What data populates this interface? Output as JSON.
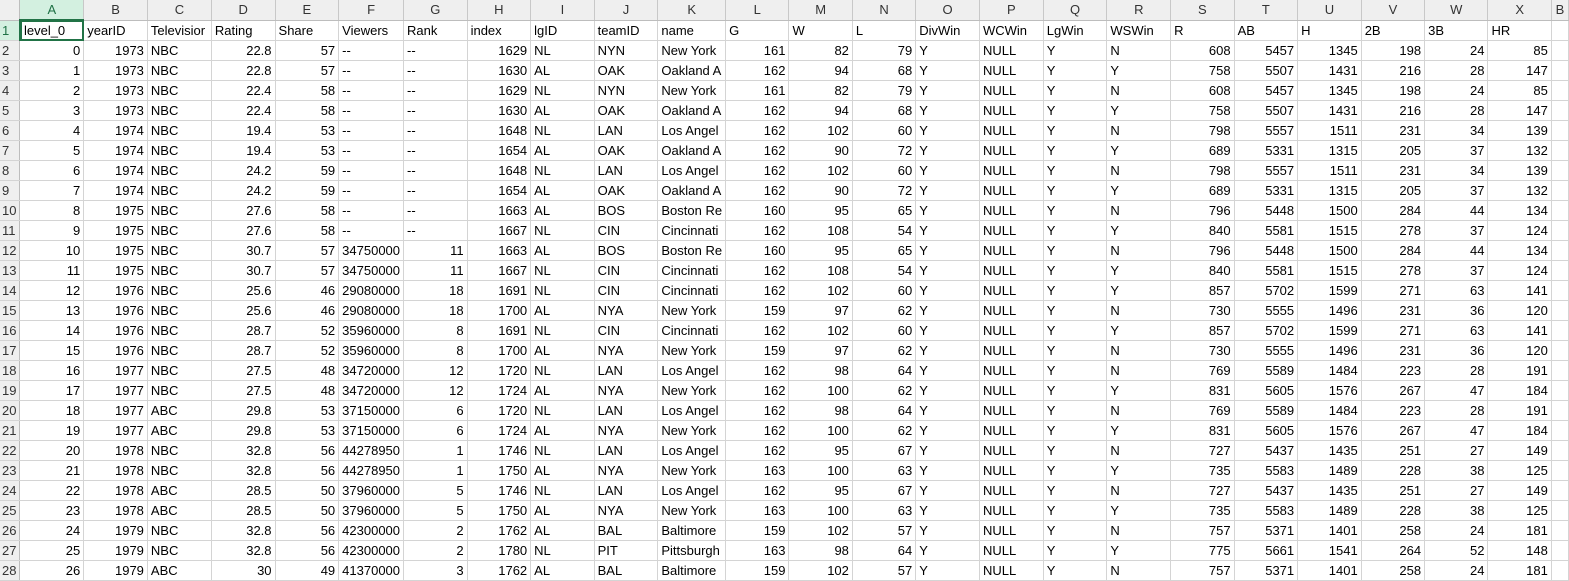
{
  "columns": [
    {
      "letter": "A",
      "kind": "num"
    },
    {
      "letter": "B",
      "kind": "num"
    },
    {
      "letter": "C",
      "kind": "txt"
    },
    {
      "letter": "D",
      "kind": "num"
    },
    {
      "letter": "E",
      "kind": "num"
    },
    {
      "letter": "F",
      "kind": "mix"
    },
    {
      "letter": "G",
      "kind": "mix"
    },
    {
      "letter": "H",
      "kind": "num"
    },
    {
      "letter": "I",
      "kind": "txt"
    },
    {
      "letter": "J",
      "kind": "txt"
    },
    {
      "letter": "K",
      "kind": "txt"
    },
    {
      "letter": "L",
      "kind": "num"
    },
    {
      "letter": "M",
      "kind": "num"
    },
    {
      "letter": "N",
      "kind": "num"
    },
    {
      "letter": "O",
      "kind": "txt"
    },
    {
      "letter": "P",
      "kind": "txt"
    },
    {
      "letter": "Q",
      "kind": "txt"
    },
    {
      "letter": "R",
      "kind": "txt"
    },
    {
      "letter": "S",
      "kind": "num"
    },
    {
      "letter": "T",
      "kind": "num"
    },
    {
      "letter": "U",
      "kind": "num"
    },
    {
      "letter": "V",
      "kind": "num"
    },
    {
      "letter": "W",
      "kind": "num"
    },
    {
      "letter": "X",
      "kind": "num"
    },
    {
      "letter": "B",
      "kind": "txt"
    }
  ],
  "header_row": [
    "level_0",
    "yearID",
    "Televisior",
    "Rating",
    "Share",
    "Viewers",
    "Rank",
    "index",
    "lgID",
    "teamID",
    "name",
    "G",
    "W",
    "L",
    "DivWin",
    "WCWin",
    "LgWin",
    "WSWin",
    "R",
    "AB",
    "H",
    "2B",
    "3B",
    "HR",
    ""
  ],
  "rows": [
    [
      "0",
      "1973",
      "NBC",
      "22.8",
      "57",
      "--",
      "--",
      "1629",
      "NL",
      "NYN",
      "New York",
      "161",
      "82",
      "79",
      "Y",
      "NULL",
      "Y",
      "N",
      "608",
      "5457",
      "1345",
      "198",
      "24",
      "85",
      ""
    ],
    [
      "1",
      "1973",
      "NBC",
      "22.8",
      "57",
      "--",
      "--",
      "1630",
      "AL",
      "OAK",
      "Oakland A",
      "162",
      "94",
      "68",
      "Y",
      "NULL",
      "Y",
      "Y",
      "758",
      "5507",
      "1431",
      "216",
      "28",
      "147",
      ""
    ],
    [
      "2",
      "1973",
      "NBC",
      "22.4",
      "58",
      "--",
      "--",
      "1629",
      "NL",
      "NYN",
      "New York",
      "161",
      "82",
      "79",
      "Y",
      "NULL",
      "Y",
      "N",
      "608",
      "5457",
      "1345",
      "198",
      "24",
      "85",
      ""
    ],
    [
      "3",
      "1973",
      "NBC",
      "22.4",
      "58",
      "--",
      "--",
      "1630",
      "AL",
      "OAK",
      "Oakland A",
      "162",
      "94",
      "68",
      "Y",
      "NULL",
      "Y",
      "Y",
      "758",
      "5507",
      "1431",
      "216",
      "28",
      "147",
      ""
    ],
    [
      "4",
      "1974",
      "NBC",
      "19.4",
      "53",
      "--",
      "--",
      "1648",
      "NL",
      "LAN",
      "Los Angel",
      "162",
      "102",
      "60",
      "Y",
      "NULL",
      "Y",
      "N",
      "798",
      "5557",
      "1511",
      "231",
      "34",
      "139",
      ""
    ],
    [
      "5",
      "1974",
      "NBC",
      "19.4",
      "53",
      "--",
      "--",
      "1654",
      "AL",
      "OAK",
      "Oakland A",
      "162",
      "90",
      "72",
      "Y",
      "NULL",
      "Y",
      "Y",
      "689",
      "5331",
      "1315",
      "205",
      "37",
      "132",
      ""
    ],
    [
      "6",
      "1974",
      "NBC",
      "24.2",
      "59",
      "--",
      "--",
      "1648",
      "NL",
      "LAN",
      "Los Angel",
      "162",
      "102",
      "60",
      "Y",
      "NULL",
      "Y",
      "N",
      "798",
      "5557",
      "1511",
      "231",
      "34",
      "139",
      ""
    ],
    [
      "7",
      "1974",
      "NBC",
      "24.2",
      "59",
      "--",
      "--",
      "1654",
      "AL",
      "OAK",
      "Oakland A",
      "162",
      "90",
      "72",
      "Y",
      "NULL",
      "Y",
      "Y",
      "689",
      "5331",
      "1315",
      "205",
      "37",
      "132",
      ""
    ],
    [
      "8",
      "1975",
      "NBC",
      "27.6",
      "58",
      "--",
      "--",
      "1663",
      "AL",
      "BOS",
      "Boston Re",
      "160",
      "95",
      "65",
      "Y",
      "NULL",
      "Y",
      "N",
      "796",
      "5448",
      "1500",
      "284",
      "44",
      "134",
      ""
    ],
    [
      "9",
      "1975",
      "NBC",
      "27.6",
      "58",
      "--",
      "--",
      "1667",
      "NL",
      "CIN",
      "Cincinnati",
      "162",
      "108",
      "54",
      "Y",
      "NULL",
      "Y",
      "Y",
      "840",
      "5581",
      "1515",
      "278",
      "37",
      "124",
      ""
    ],
    [
      "10",
      "1975",
      "NBC",
      "30.7",
      "57",
      "34750000",
      "11",
      "1663",
      "AL",
      "BOS",
      "Boston Re",
      "160",
      "95",
      "65",
      "Y",
      "NULL",
      "Y",
      "N",
      "796",
      "5448",
      "1500",
      "284",
      "44",
      "134",
      ""
    ],
    [
      "11",
      "1975",
      "NBC",
      "30.7",
      "57",
      "34750000",
      "11",
      "1667",
      "NL",
      "CIN",
      "Cincinnati",
      "162",
      "108",
      "54",
      "Y",
      "NULL",
      "Y",
      "Y",
      "840",
      "5581",
      "1515",
      "278",
      "37",
      "124",
      ""
    ],
    [
      "12",
      "1976",
      "NBC",
      "25.6",
      "46",
      "29080000",
      "18",
      "1691",
      "NL",
      "CIN",
      "Cincinnati",
      "162",
      "102",
      "60",
      "Y",
      "NULL",
      "Y",
      "Y",
      "857",
      "5702",
      "1599",
      "271",
      "63",
      "141",
      ""
    ],
    [
      "13",
      "1976",
      "NBC",
      "25.6",
      "46",
      "29080000",
      "18",
      "1700",
      "AL",
      "NYA",
      "New York",
      "159",
      "97",
      "62",
      "Y",
      "NULL",
      "Y",
      "N",
      "730",
      "5555",
      "1496",
      "231",
      "36",
      "120",
      ""
    ],
    [
      "14",
      "1976",
      "NBC",
      "28.7",
      "52",
      "35960000",
      "8",
      "1691",
      "NL",
      "CIN",
      "Cincinnati",
      "162",
      "102",
      "60",
      "Y",
      "NULL",
      "Y",
      "Y",
      "857",
      "5702",
      "1599",
      "271",
      "63",
      "141",
      ""
    ],
    [
      "15",
      "1976",
      "NBC",
      "28.7",
      "52",
      "35960000",
      "8",
      "1700",
      "AL",
      "NYA",
      "New York",
      "159",
      "97",
      "62",
      "Y",
      "NULL",
      "Y",
      "N",
      "730",
      "5555",
      "1496",
      "231",
      "36",
      "120",
      ""
    ],
    [
      "16",
      "1977",
      "NBC",
      "27.5",
      "48",
      "34720000",
      "12",
      "1720",
      "NL",
      "LAN",
      "Los Angel",
      "162",
      "98",
      "64",
      "Y",
      "NULL",
      "Y",
      "N",
      "769",
      "5589",
      "1484",
      "223",
      "28",
      "191",
      ""
    ],
    [
      "17",
      "1977",
      "NBC",
      "27.5",
      "48",
      "34720000",
      "12",
      "1724",
      "AL",
      "NYA",
      "New York",
      "162",
      "100",
      "62",
      "Y",
      "NULL",
      "Y",
      "Y",
      "831",
      "5605",
      "1576",
      "267",
      "47",
      "184",
      ""
    ],
    [
      "18",
      "1977",
      "ABC",
      "29.8",
      "53",
      "37150000",
      "6",
      "1720",
      "NL",
      "LAN",
      "Los Angel",
      "162",
      "98",
      "64",
      "Y",
      "NULL",
      "Y",
      "N",
      "769",
      "5589",
      "1484",
      "223",
      "28",
      "191",
      ""
    ],
    [
      "19",
      "1977",
      "ABC",
      "29.8",
      "53",
      "37150000",
      "6",
      "1724",
      "AL",
      "NYA",
      "New York",
      "162",
      "100",
      "62",
      "Y",
      "NULL",
      "Y",
      "Y",
      "831",
      "5605",
      "1576",
      "267",
      "47",
      "184",
      ""
    ],
    [
      "20",
      "1978",
      "NBC",
      "32.8",
      "56",
      "44278950",
      "1",
      "1746",
      "NL",
      "LAN",
      "Los Angel",
      "162",
      "95",
      "67",
      "Y",
      "NULL",
      "Y",
      "N",
      "727",
      "5437",
      "1435",
      "251",
      "27",
      "149",
      ""
    ],
    [
      "21",
      "1978",
      "NBC",
      "32.8",
      "56",
      "44278950",
      "1",
      "1750",
      "AL",
      "NYA",
      "New York",
      "163",
      "100",
      "63",
      "Y",
      "NULL",
      "Y",
      "Y",
      "735",
      "5583",
      "1489",
      "228",
      "38",
      "125",
      ""
    ],
    [
      "22",
      "1978",
      "ABC",
      "28.5",
      "50",
      "37960000",
      "5",
      "1746",
      "NL",
      "LAN",
      "Los Angel",
      "162",
      "95",
      "67",
      "Y",
      "NULL",
      "Y",
      "N",
      "727",
      "5437",
      "1435",
      "251",
      "27",
      "149",
      ""
    ],
    [
      "23",
      "1978",
      "ABC",
      "28.5",
      "50",
      "37960000",
      "5",
      "1750",
      "AL",
      "NYA",
      "New York",
      "163",
      "100",
      "63",
      "Y",
      "NULL",
      "Y",
      "Y",
      "735",
      "5583",
      "1489",
      "228",
      "38",
      "125",
      ""
    ],
    [
      "24",
      "1979",
      "NBC",
      "32.8",
      "56",
      "42300000",
      "2",
      "1762",
      "AL",
      "BAL",
      "Baltimore",
      "159",
      "102",
      "57",
      "Y",
      "NULL",
      "Y",
      "N",
      "757",
      "5371",
      "1401",
      "258",
      "24",
      "181",
      ""
    ],
    [
      "25",
      "1979",
      "NBC",
      "32.8",
      "56",
      "42300000",
      "2",
      "1780",
      "NL",
      "PIT",
      "Pittsburgh",
      "163",
      "98",
      "64",
      "Y",
      "NULL",
      "Y",
      "Y",
      "775",
      "5661",
      "1541",
      "264",
      "52",
      "148",
      ""
    ],
    [
      "26",
      "1979",
      "ABC",
      "30",
      "49",
      "41370000",
      "3",
      "1762",
      "AL",
      "BAL",
      "Baltimore",
      "159",
      "102",
      "57",
      "Y",
      "NULL",
      "Y",
      "N",
      "757",
      "5371",
      "1401",
      "258",
      "24",
      "181",
      ""
    ]
  ],
  "colors": {
    "header_bg": "#efefef",
    "grid": "#d4d4d4",
    "accent": "#217346",
    "active_header_bg": "#d3f0e0"
  }
}
